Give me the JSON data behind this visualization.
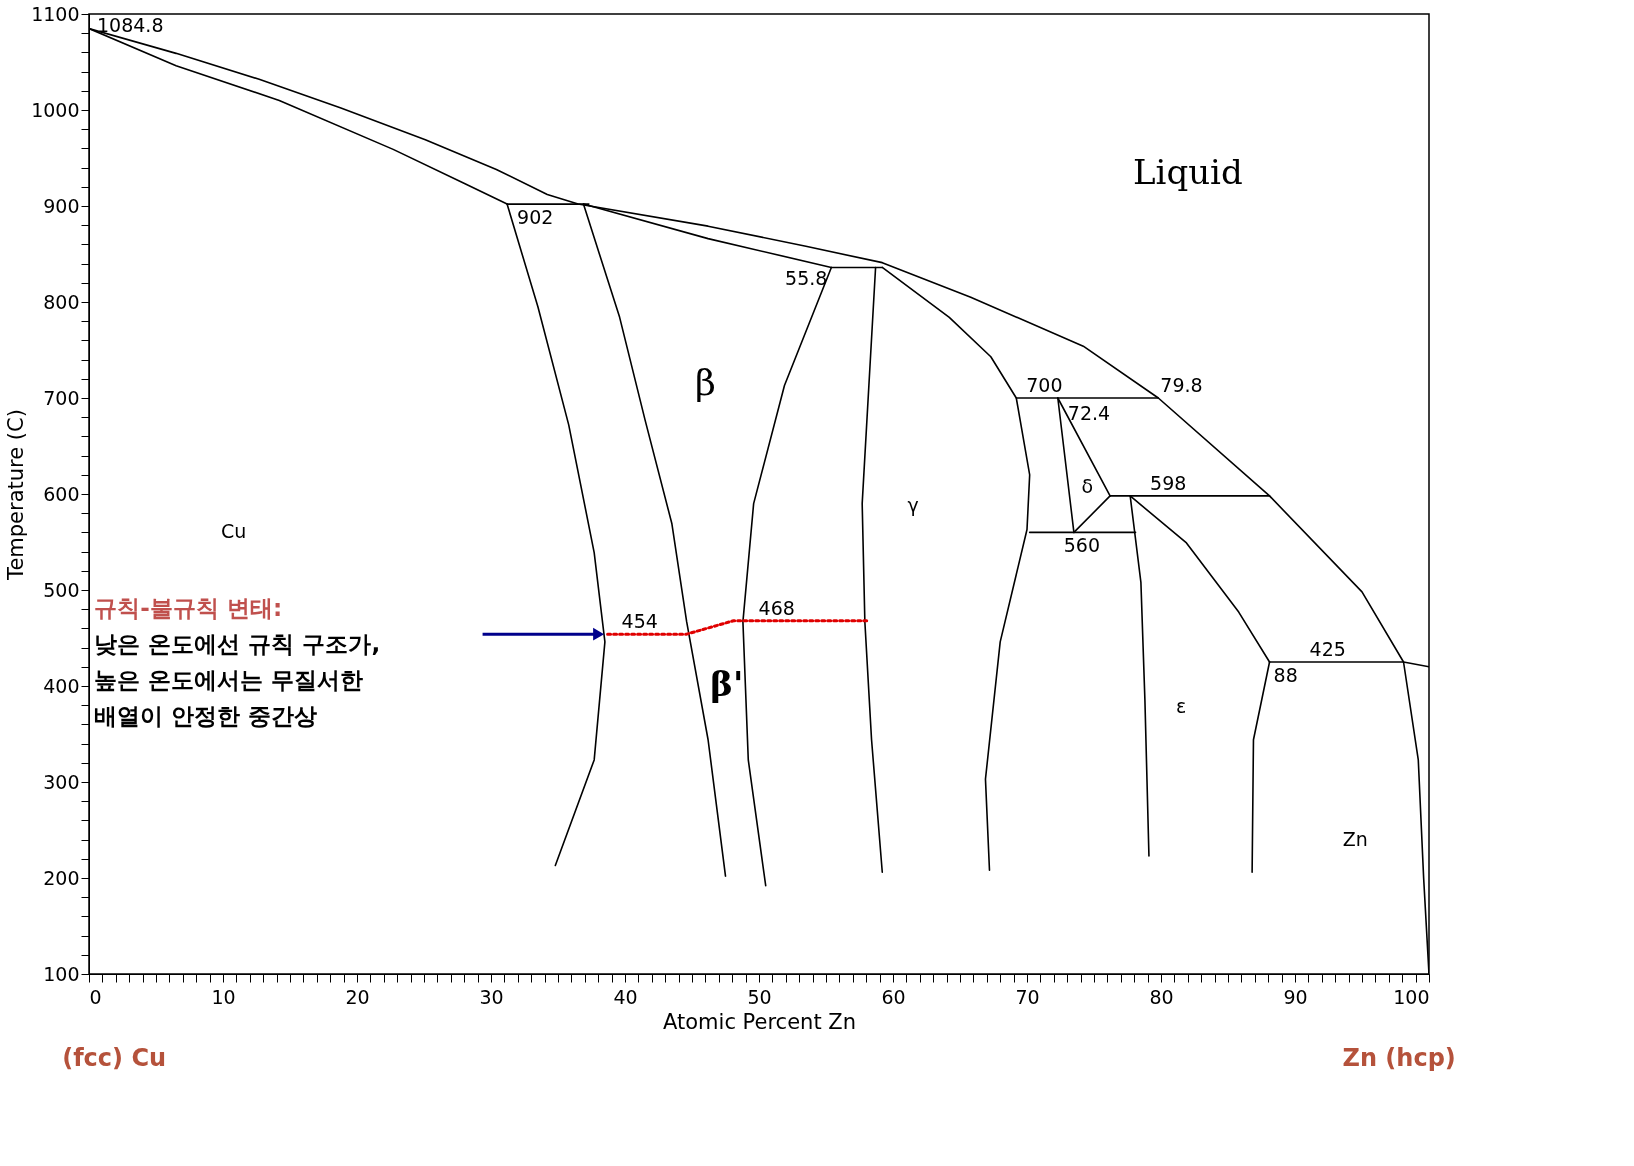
{
  "chart_data": {
    "type": "line",
    "xlabel": "Atomic Percent Zn",
    "ylabel": "Temperature (C)",
    "xlim": [
      0,
      100
    ],
    "ylim": [
      100,
      1100
    ],
    "xticks": [
      0,
      {
        "value": 1,
        "label": null
      },
      {
        "value": 2,
        "label": null
      },
      {
        "value": 3,
        "label": null
      },
      {
        "value": 4,
        "label": null
      },
      {
        "value": 5,
        "label": null
      },
      {
        "value": 6,
        "label": null
      },
      {
        "value": 7,
        "label": null
      },
      {
        "value": 8,
        "label": null
      },
      {
        "value": 9,
        "label": null
      },
      10,
      {
        "value": 11,
        "label": null
      },
      {
        "value": 12,
        "label": null
      },
      {
        "value": 13,
        "label": null
      },
      {
        "value": 14,
        "label": null
      },
      {
        "value": 15,
        "label": null
      },
      {
        "value": 16,
        "label": null
      },
      {
        "value": 17,
        "label": null
      },
      {
        "value": 18,
        "label": null
      },
      {
        "value": 19,
        "label": null
      },
      20,
      {
        "value": 21,
        "label": null
      },
      {
        "value": 22,
        "label": null
      },
      {
        "value": 23,
        "label": null
      },
      {
        "value": 24,
        "label": null
      },
      {
        "value": 25,
        "label": null
      },
      {
        "value": 26,
        "label": null
      },
      {
        "value": 27,
        "label": null
      },
      {
        "value": 28,
        "label": null
      },
      {
        "value": 29,
        "label": null
      },
      30,
      {
        "value": 31,
        "label": null
      },
      {
        "value": 32,
        "label": null
      },
      {
        "value": 33,
        "label": null
      },
      {
        "value": 34,
        "label": null
      },
      {
        "value": 35,
        "label": null
      },
      {
        "value": 36,
        "label": null
      },
      {
        "value": 37,
        "label": null
      },
      {
        "value": 38,
        "label": null
      },
      {
        "value": 39,
        "label": null
      },
      40,
      {
        "value": 41,
        "label": null
      },
      {
        "value": 42,
        "label": null
      },
      {
        "value": 43,
        "label": null
      },
      {
        "value": 44,
        "label": null
      },
      {
        "value": 45,
        "label": null
      },
      {
        "value": 46,
        "label": null
      },
      {
        "value": 47,
        "label": null
      },
      {
        "value": 48,
        "label": null
      },
      {
        "value": 49,
        "label": null
      },
      50,
      {
        "value": 51,
        "label": null
      },
      {
        "value": 52,
        "label": null
      },
      {
        "value": 53,
        "label": null
      },
      {
        "value": 54,
        "label": null
      },
      {
        "value": 55,
        "label": null
      },
      {
        "value": 56,
        "label": null
      },
      {
        "value": 57,
        "label": null
      },
      {
        "value": 58,
        "label": null
      },
      {
        "value": 59,
        "label": null
      },
      60,
      {
        "value": 61,
        "label": null
      },
      {
        "value": 62,
        "label": null
      },
      {
        "value": 63,
        "label": null
      },
      {
        "value": 64,
        "label": null
      },
      {
        "value": 65,
        "label": null
      },
      {
        "value": 66,
        "label": null
      },
      {
        "value": 67,
        "label": null
      },
      {
        "value": 68,
        "label": null
      },
      {
        "value": 69,
        "label": null
      },
      70,
      {
        "value": 71,
        "label": null
      },
      {
        "value": 72,
        "label": null
      },
      {
        "value": 73,
        "label": null
      },
      {
        "value": 74,
        "label": null
      },
      {
        "value": 75,
        "label": null
      },
      {
        "value": 76,
        "label": null
      },
      {
        "value": 77,
        "label": null
      },
      {
        "value": 78,
        "label": null
      },
      {
        "value": 79,
        "label": null
      },
      80,
      {
        "value": 81,
        "label": null
      },
      {
        "value": 82,
        "label": null
      },
      {
        "value": 83,
        "label": null
      },
      {
        "value": 84,
        "label": null
      },
      {
        "value": 85,
        "label": null
      },
      {
        "value": 86,
        "label": null
      },
      {
        "value": 87,
        "label": null
      },
      {
        "value": 88,
        "label": null
      },
      {
        "value": 89,
        "label": null
      },
      90,
      {
        "value": 91,
        "label": null
      },
      {
        "value": 92,
        "label": null
      },
      {
        "value": 93,
        "label": null
      },
      {
        "value": 94,
        "label": null
      },
      {
        "value": 95,
        "label": null
      },
      {
        "value": 96,
        "label": null
      },
      {
        "value": 97,
        "label": null
      },
      {
        "value": 98,
        "label": null
      },
      {
        "value": 99,
        "label": null
      },
      100
    ],
    "yticks": [
      100,
      {
        "value": 120,
        "label": null
      },
      {
        "value": 140,
        "label": null
      },
      {
        "value": 160,
        "label": null
      },
      {
        "value": 180,
        "label": null
      },
      200,
      {
        "value": 220,
        "label": null
      },
      {
        "value": 240,
        "label": null
      },
      {
        "value": 260,
        "label": null
      },
      {
        "value": 280,
        "label": null
      },
      300,
      {
        "value": 320,
        "label": null
      },
      {
        "value": 340,
        "label": null
      },
      {
        "value": 360,
        "label": null
      },
      {
        "value": 380,
        "label": null
      },
      400,
      {
        "value": 420,
        "label": null
      },
      {
        "value": 440,
        "label": null
      },
      {
        "value": 460,
        "label": null
      },
      {
        "value": 480,
        "label": null
      },
      500,
      {
        "value": 520,
        "label": null
      },
      {
        "value": 540,
        "label": null
      },
      {
        "value": 560,
        "label": null
      },
      {
        "value": 580,
        "label": null
      },
      600,
      {
        "value": 620,
        "label": null
      },
      {
        "value": 640,
        "label": null
      },
      {
        "value": 660,
        "label": null
      },
      {
        "value": 680,
        "label": null
      },
      700,
      {
        "value": 720,
        "label": null
      },
      {
        "value": 740,
        "label": null
      },
      {
        "value": 760,
        "label": null
      },
      {
        "value": 780,
        "label": null
      },
      800,
      {
        "value": 820,
        "label": null
      },
      {
        "value": 840,
        "label": null
      },
      {
        "value": 860,
        "label": null
      },
      {
        "value": 880,
        "label": null
      },
      900,
      {
        "value": 920,
        "label": null
      },
      {
        "value": 940,
        "label": null
      },
      {
        "value": 960,
        "label": null
      },
      {
        "value": 980,
        "label": null
      },
      1000,
      {
        "value": 1020,
        "label": null
      },
      {
        "value": 1040,
        "label": null
      },
      {
        "value": 1060,
        "label": null
      },
      {
        "value": 1080,
        "label": null
      },
      1100
    ],
    "grid": false,
    "line_style": "solid",
    "series": [
      {
        "color": "#000000",
        "x": [
          0,
          6.5,
          12.7,
          18.8,
          25.1,
          30.4,
          34.2,
          36.5,
          46.2,
          53.5,
          59.2,
          65.8,
          74.2,
          79.8,
          88.1,
          95,
          98.1,
          100
        ],
        "values": [
          1084.8,
          1059,
          1032,
          1002,
          969,
          938,
          912,
          902,
          879,
          858,
          841,
          805,
          754,
          700,
          598,
          498,
          425,
          420
        ]
      },
      {
        "color": "#000000",
        "x": [
          0,
          6.5,
          14.2,
          22.7,
          28.1,
          31.2
        ],
        "values": [
          1084.8,
          1046,
          1010,
          959,
          923,
          902
        ]
      },
      {
        "color": "#000000",
        "x": [
          31.2,
          37.3
        ],
        "values": [
          902,
          902
        ]
      },
      {
        "color": "#000000",
        "x": [
          31.2,
          33.5,
          35.8,
          37.7,
          38.5,
          37.7,
          34.8
        ],
        "values": [
          902,
          795,
          672,
          539,
          446,
          323,
          213
        ]
      },
      {
        "color": "#000000",
        "x": [
          36.9,
          39.6,
          41.5,
          43.5,
          44.6,
          46.2,
          47.5
        ],
        "values": [
          902,
          784,
          677,
          569,
          467,
          344,
          202
        ]
      },
      {
        "color": "#000000",
        "x": [
          36.9,
          46.2,
          55.4,
          59.2
        ],
        "values": [
          902,
          866,
          836,
          836
        ]
      },
      {
        "color": "#000000",
        "x": [
          55.4,
          51.9,
          49.6,
          48.8,
          49.2,
          50.5
        ],
        "values": [
          836,
          713,
          590,
          467,
          323,
          192
        ]
      },
      {
        "color": "#000000",
        "x": [
          58.7,
          58.2,
          57.7,
          57.9,
          58.4,
          59.2
        ],
        "values": [
          836,
          713,
          590,
          467,
          344,
          206
        ]
      },
      {
        "color": "#000000",
        "x": [
          59.2,
          64.2,
          67.3,
          69.2,
          70.2,
          70,
          68,
          66.9,
          67.2
        ],
        "values": [
          836,
          784,
          743,
          700,
          620,
          563,
          446,
          303,
          208
        ]
      },
      {
        "color": "#000000",
        "x": [
          69.2,
          79.8
        ],
        "values": [
          700,
          700
        ]
      },
      {
        "color": "#000000",
        "x": [
          72.3,
          73.5
        ],
        "values": [
          700,
          560
        ]
      },
      {
        "color": "#000000",
        "x": [
          72.3,
          76.2
        ],
        "values": [
          700,
          598
        ]
      },
      {
        "color": "#000000",
        "x": [
          73.5,
          76.2
        ],
        "values": [
          560,
          598
        ]
      },
      {
        "color": "#000000",
        "x": [
          70.2,
          78.1
        ],
        "values": [
          560,
          560
        ]
      },
      {
        "color": "#000000",
        "x": [
          76.2,
          88.1
        ],
        "values": [
          598,
          598
        ]
      },
      {
        "color": "#000000",
        "x": [
          77.7,
          78.5,
          78.8,
          79.1
        ],
        "values": [
          598,
          508,
          385,
          223
        ]
      },
      {
        "color": "#000000",
        "x": [
          77.7,
          81.9,
          85.8,
          88.1
        ],
        "values": [
          598,
          549,
          477,
          425
        ]
      },
      {
        "color": "#000000",
        "x": [
          88.1,
          98.1
        ],
        "values": [
          425,
          425
        ]
      },
      {
        "color": "#000000",
        "x": [
          88.1,
          86.9,
          86.8
        ],
        "values": [
          425,
          344,
          206
        ]
      },
      {
        "color": "#000000",
        "x": [
          98.1,
          99.2,
          99.6,
          100
        ],
        "values": [
          425,
          323,
          200,
          100
        ]
      },
      {
        "color": "#e00000",
        "line_style": "dotted",
        "x": [
          38.7,
          44.6,
          48.1,
          58.2
        ],
        "values": [
          454,
          454,
          468,
          468
        ]
      }
    ],
    "annotations": [
      {
        "text": "1084.8",
        "x": 0,
        "y": 1084.8
      },
      {
        "text": "902",
        "x": 31.2,
        "y": 902
      },
      {
        "text": "55.8",
        "x": 55.4,
        "y": 836
      },
      {
        "text": "700",
        "x": 69.2,
        "y": 700
      },
      {
        "text": "79.8",
        "x": 79.8,
        "y": 700
      },
      {
        "text": "72.4",
        "x": 72.3,
        "y": 700
      },
      {
        "text": "598",
        "x": 76.2,
        "y": 598
      },
      {
        "text": "560",
        "x": 73.5,
        "y": 560
      },
      {
        "text": "425",
        "x": 88.1,
        "y": 425
      },
      {
        "text": "88",
        "x": 88.1,
        "y": 425
      },
      {
        "text": "454",
        "x": 38.7,
        "y": 454
      },
      {
        "text": "468",
        "x": 48.1,
        "y": 468
      },
      "Liquid",
      "β",
      "β'",
      "γ",
      "δ",
      "ε",
      "Cu",
      "Zn",
      "규칙-불규칙 변태:\n낮은 온도에선 규칙 구조가,\n높은 온도에서는 무질서한\n배열이 안정한 중간상",
      "(fcc) Cu",
      "Zn (hcp)"
    ]
  }
}
